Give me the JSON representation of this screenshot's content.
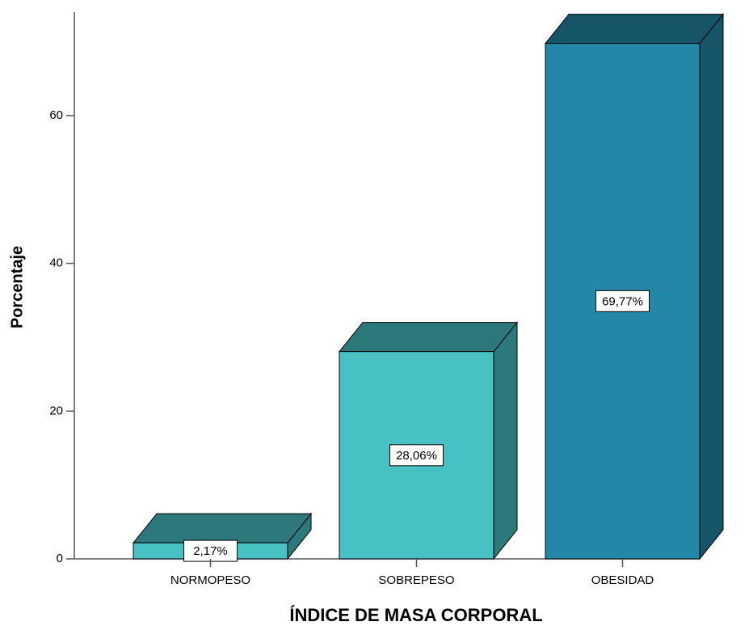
{
  "chart_data": {
    "type": "bar3d",
    "x_label": "ÍNDICE DE MASA CORPORAL",
    "y_label": "Porcentaje",
    "categories": [
      "NORMOPESO",
      "SOBREPESO",
      "OBESIDAD"
    ],
    "values": [
      2.17,
      28.06,
      69.77
    ],
    "value_labels": [
      "2,17%",
      "28,06%",
      "69,77%"
    ],
    "colors": [
      "#48c1c5",
      "#48c1c5",
      "#2388a8"
    ],
    "ylim": [
      0,
      74
    ],
    "yticks": [
      0,
      20,
      40,
      60
    ]
  }
}
